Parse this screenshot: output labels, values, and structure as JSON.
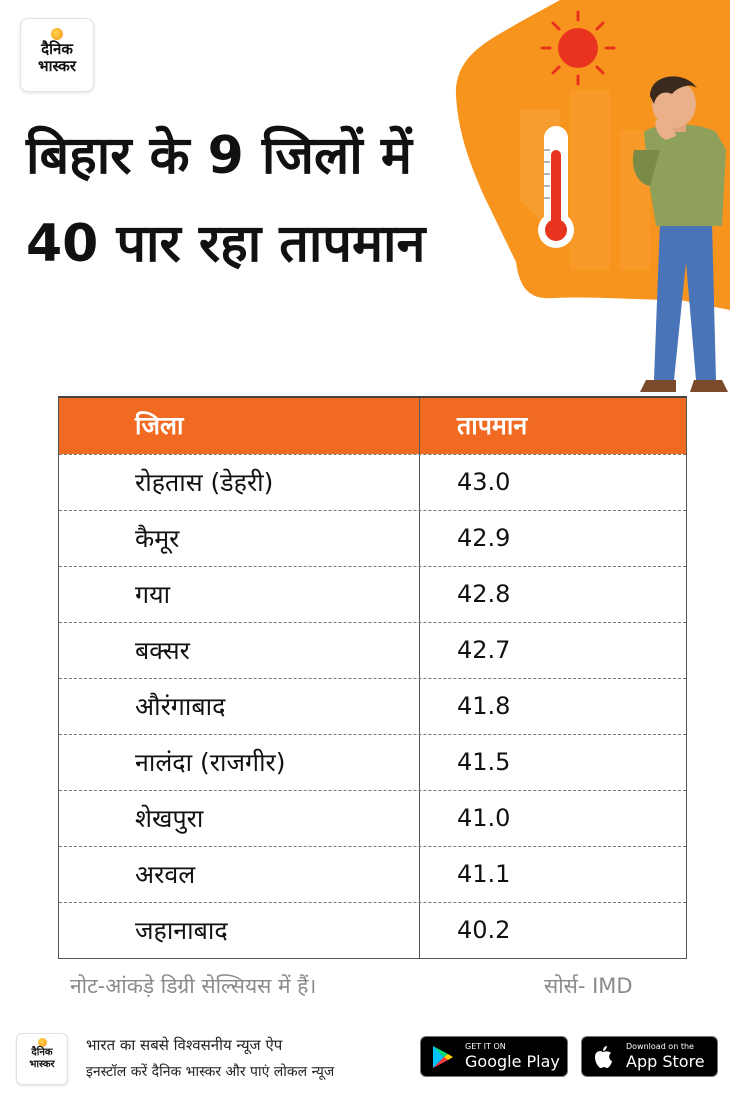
{
  "brand": {
    "line1": "दैनिक",
    "line2": "भास्कर"
  },
  "headline": "बिहार के 9 जिलों में 40 पार रहा तापमान",
  "table": {
    "headers": [
      "जिला",
      "तापमान"
    ],
    "rows": [
      [
        "रोहतास (डेहरी)",
        "43.0"
      ],
      [
        "कैमूर",
        "42.9"
      ],
      [
        "गया",
        "42.8"
      ],
      [
        "बक्सर",
        "42.7"
      ],
      [
        "औरंगाबाद",
        "41.8"
      ],
      [
        "नालंदा (राजगीर)",
        "41.5"
      ],
      [
        "शेखपुरा",
        "41.0"
      ],
      [
        "अरवल",
        "41.1"
      ],
      [
        "जहानाबाद",
        "40.2"
      ]
    ]
  },
  "note": "नोट-आंकड़े डिग्री सेल्सियस में हैं।",
  "source": "सोर्स- IMD",
  "footer": {
    "tagline1": "भारत का सबसे विश्वसनीय न्यूज ऐप",
    "tagline2": "इनस्टॉल करें दैनिक भास्कर और पाएं लोकल न्यूज",
    "google_play": {
      "small": "GET IT ON",
      "big": "Google Play"
    },
    "app_store": {
      "small": "Download on the",
      "big": "App Store"
    }
  },
  "colors": {
    "accent": "#f16a22",
    "illustration_bg": "#f7941d"
  },
  "icons": [
    "sun-icon",
    "thermometer-icon",
    "google-play-icon",
    "apple-icon"
  ]
}
